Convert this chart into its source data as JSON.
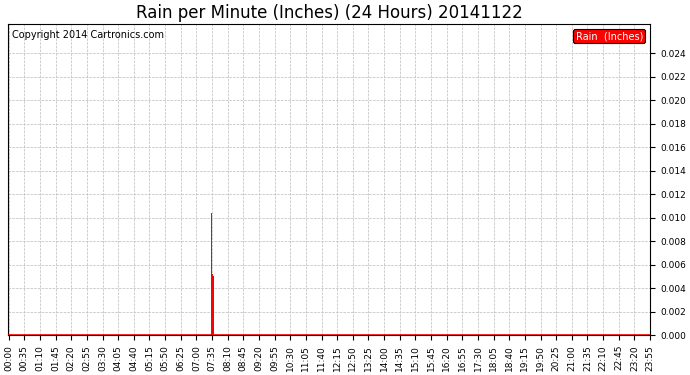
{
  "title": "Rain per Minute (Inches) (24 Hours) 20141122",
  "copyright": "Copyright 2014 Cartronics.com",
  "legend_label": "Rain  (Inches)",
  "ylim": [
    0.0,
    0.0265
  ],
  "yticks": [
    0.0,
    0.002,
    0.004,
    0.006,
    0.008,
    0.01,
    0.012,
    0.014,
    0.016,
    0.018,
    0.02,
    0.022,
    0.024
  ],
  "plot_bg_color": "#ffffff",
  "fig_bg_color": "#ffffff",
  "bar_color": "#ff0000",
  "baseline_color": "#ff0000",
  "grid_color": "#bbbbbb",
  "title_fontsize": 12,
  "copyright_fontsize": 7,
  "tick_fontsize": 6.5,
  "total_minutes": 1440,
  "rain_events": [
    {
      "minute": 455,
      "value": 0.0104
    },
    {
      "minute": 456,
      "value": 0.0104
    },
    {
      "minute": 457,
      "value": 0.0052
    },
    {
      "minute": 458,
      "value": 0.0104
    },
    {
      "minute": 460,
      "value": 0.005
    }
  ],
  "xtick_labels": [
    "00:00",
    "00:35",
    "01:10",
    "01:45",
    "02:20",
    "02:55",
    "03:30",
    "04:05",
    "04:40",
    "05:15",
    "05:50",
    "06:25",
    "07:00",
    "07:35",
    "08:10",
    "08:45",
    "09:20",
    "09:55",
    "10:30",
    "11:05",
    "11:40",
    "12:15",
    "12:50",
    "13:25",
    "14:00",
    "14:35",
    "15:10",
    "15:45",
    "16:20",
    "16:55",
    "17:30",
    "18:05",
    "18:40",
    "19:15",
    "19:50",
    "20:25",
    "21:00",
    "21:35",
    "22:10",
    "22:45",
    "23:20",
    "23:55"
  ]
}
